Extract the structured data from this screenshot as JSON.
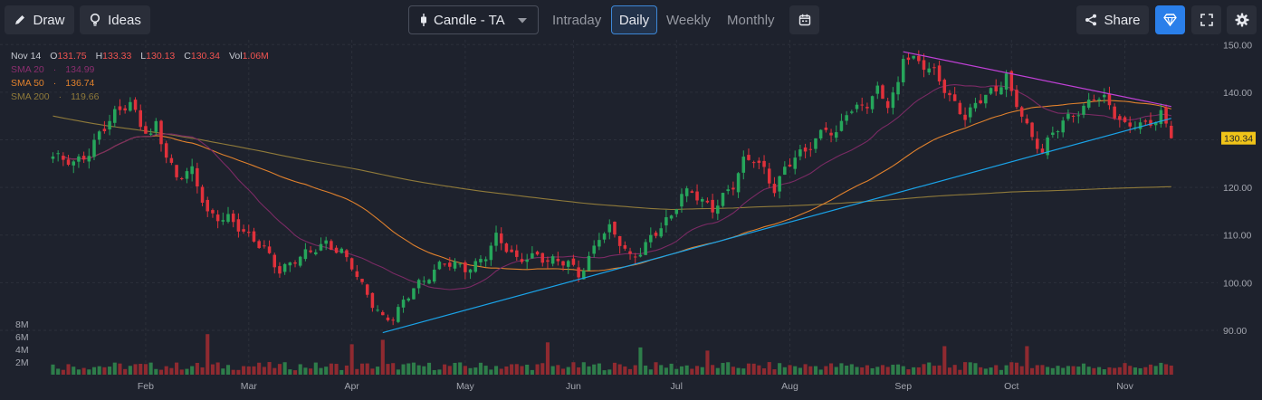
{
  "toolbar": {
    "draw_label": "Draw",
    "ideas_label": "Ideas",
    "chart_type_label": "Candle - TA",
    "timeframes": [
      "Intraday",
      "Daily",
      "Weekly",
      "Monthly"
    ],
    "active_timeframe": "Daily",
    "share_label": "Share"
  },
  "legend": {
    "date": "Nov 14",
    "open_label": "O",
    "open": "131.75",
    "high_label": "H",
    "high": "133.33",
    "low_label": "L",
    "low": "130.13",
    "close_label": "C",
    "close": "130.34",
    "vol_label": "Vol",
    "vol": "1.06M",
    "sma20_label": "SMA 20",
    "sma20": "134.99",
    "sma50_label": "SMA 50",
    "sma50": "136.74",
    "sma200_label": "SMA 200",
    "sma200": "119.66",
    "separator": "·"
  },
  "colors": {
    "up": "#26a65b",
    "down": "#e0313b",
    "vol_up": "#2e7d4a",
    "vol_down": "#8f2a30",
    "sma20": "#7a2a64",
    "sma50": "#e0812d",
    "sma200": "#8f7a3a",
    "support": "#1aa3e8",
    "resistance": "#c040d6",
    "price_tag": "#f0c419",
    "accent": "#2a7fea"
  },
  "chart_data": {
    "type": "candlestick",
    "title": "Candle - TA",
    "price_axis": {
      "ylim": [
        86,
        151
      ],
      "ticks": [
        90,
        100,
        110,
        120,
        130,
        140,
        150
      ],
      "tick_labels": [
        "90.00",
        "100.00",
        "110.00",
        "120.00",
        "130.00",
        "140.00",
        "150.00"
      ]
    },
    "volume_axis": {
      "ylim": [
        0,
        10
      ],
      "unit": "M",
      "ticks": [
        2,
        4,
        6,
        8
      ],
      "tick_labels": [
        "2M",
        "4M",
        "6M",
        "8M"
      ]
    },
    "x_range": [
      -5,
      226
    ],
    "months": [
      {
        "label": "Feb",
        "index": 18
      },
      {
        "label": "Mar",
        "index": 38
      },
      {
        "label": "Apr",
        "index": 58
      },
      {
        "label": "May",
        "index": 80
      },
      {
        "label": "Jun",
        "index": 101
      },
      {
        "label": "Jul",
        "index": 121
      },
      {
        "label": "Aug",
        "index": 143
      },
      {
        "label": "Sep",
        "index": 165
      },
      {
        "label": "Oct",
        "index": 186
      },
      {
        "label": "Nov",
        "index": 208
      }
    ],
    "close_anchors": [
      [
        0,
        126.5
      ],
      [
        4,
        124.5
      ],
      [
        7,
        127.5
      ],
      [
        9,
        132
      ],
      [
        12,
        135.5
      ],
      [
        15,
        137
      ],
      [
        17,
        133
      ],
      [
        19,
        131
      ],
      [
        20,
        134
      ],
      [
        22,
        127
      ],
      [
        24,
        122
      ],
      [
        27,
        123
      ],
      [
        30,
        114.5
      ],
      [
        34,
        114
      ],
      [
        38,
        109
      ],
      [
        41,
        107
      ],
      [
        44,
        103
      ],
      [
        47,
        105
      ],
      [
        50,
        106
      ],
      [
        53,
        108
      ],
      [
        56,
        107
      ],
      [
        58,
        104
      ],
      [
        60,
        99
      ],
      [
        62,
        95
      ],
      [
        64,
        92
      ],
      [
        66,
        93
      ],
      [
        68,
        96.5
      ],
      [
        70,
        99.5
      ],
      [
        72,
        100
      ],
      [
        74,
        102
      ],
      [
        76,
        104
      ],
      [
        78,
        104.2
      ],
      [
        80,
        103.5
      ],
      [
        82,
        104
      ],
      [
        84,
        105.5
      ],
      [
        86,
        109
      ],
      [
        88,
        107
      ],
      [
        90,
        105
      ],
      [
        92,
        106
      ],
      [
        94,
        105.8
      ],
      [
        96,
        104.2
      ],
      [
        98,
        104
      ],
      [
        100,
        104
      ],
      [
        102,
        102
      ],
      [
        104,
        105.5
      ],
      [
        106,
        110
      ],
      [
        108,
        111
      ],
      [
        110,
        108
      ],
      [
        112,
        105
      ],
      [
        114,
        107
      ],
      [
        116,
        110
      ],
      [
        118,
        112
      ],
      [
        120,
        113.5
      ],
      [
        122,
        118
      ],
      [
        124,
        119
      ],
      [
        126,
        117.5
      ],
      [
        128,
        116
      ],
      [
        130,
        118.2
      ],
      [
        132,
        120
      ],
      [
        134,
        125
      ],
      [
        136,
        126
      ],
      [
        138,
        124
      ],
      [
        140,
        120
      ],
      [
        142,
        124
      ],
      [
        144,
        126
      ],
      [
        146,
        127
      ],
      [
        148,
        130
      ],
      [
        150,
        133
      ],
      [
        152,
        131.5
      ],
      [
        154,
        136
      ],
      [
        156,
        136
      ],
      [
        158,
        137
      ],
      [
        160,
        140.5
      ],
      [
        162,
        138
      ],
      [
        164,
        142
      ],
      [
        165,
        148
      ],
      [
        167,
        146.5
      ],
      [
        169,
        145
      ],
      [
        171,
        144
      ],
      [
        173,
        141
      ],
      [
        175,
        138
      ],
      [
        177,
        135
      ],
      [
        179,
        137
      ],
      [
        181,
        139
      ],
      [
        183,
        140
      ],
      [
        185,
        144
      ],
      [
        186,
        140
      ],
      [
        188,
        136
      ],
      [
        190,
        130
      ],
      [
        192,
        127
      ],
      [
        194,
        131
      ],
      [
        196,
        134
      ],
      [
        198,
        136
      ],
      [
        200,
        137
      ],
      [
        202,
        139
      ],
      [
        204,
        138
      ],
      [
        206,
        135
      ],
      [
        208,
        133
      ],
      [
        210,
        134
      ],
      [
        212,
        133.5
      ],
      [
        214,
        134
      ],
      [
        215,
        135
      ],
      [
        216,
        132.5
      ],
      [
        217,
        130.34
      ]
    ],
    "last_close": 130.34,
    "last_close_label": "130.34",
    "series": [
      {
        "name": "SMA 20",
        "type": "line",
        "last": 134.99
      },
      {
        "name": "SMA 50",
        "type": "line",
        "last": 136.74
      },
      {
        "name": "SMA 200",
        "type": "line",
        "last": 119.66
      }
    ],
    "trendlines": [
      {
        "name": "support",
        "points": [
          [
            64,
            89.5
          ],
          [
            217,
            134.5
          ]
        ]
      },
      {
        "name": "resistance",
        "points": [
          [
            165,
            148.5
          ],
          [
            217,
            137
          ]
        ]
      }
    ],
    "notable_volumes": [
      [
        30,
        6.4
      ],
      [
        64,
        5.5
      ],
      [
        58,
        4.8
      ],
      [
        96,
        5.1
      ],
      [
        189,
        4.5
      ],
      [
        114,
        4.3
      ],
      [
        173,
        4.5
      ],
      [
        127,
        3.8
      ]
    ]
  }
}
